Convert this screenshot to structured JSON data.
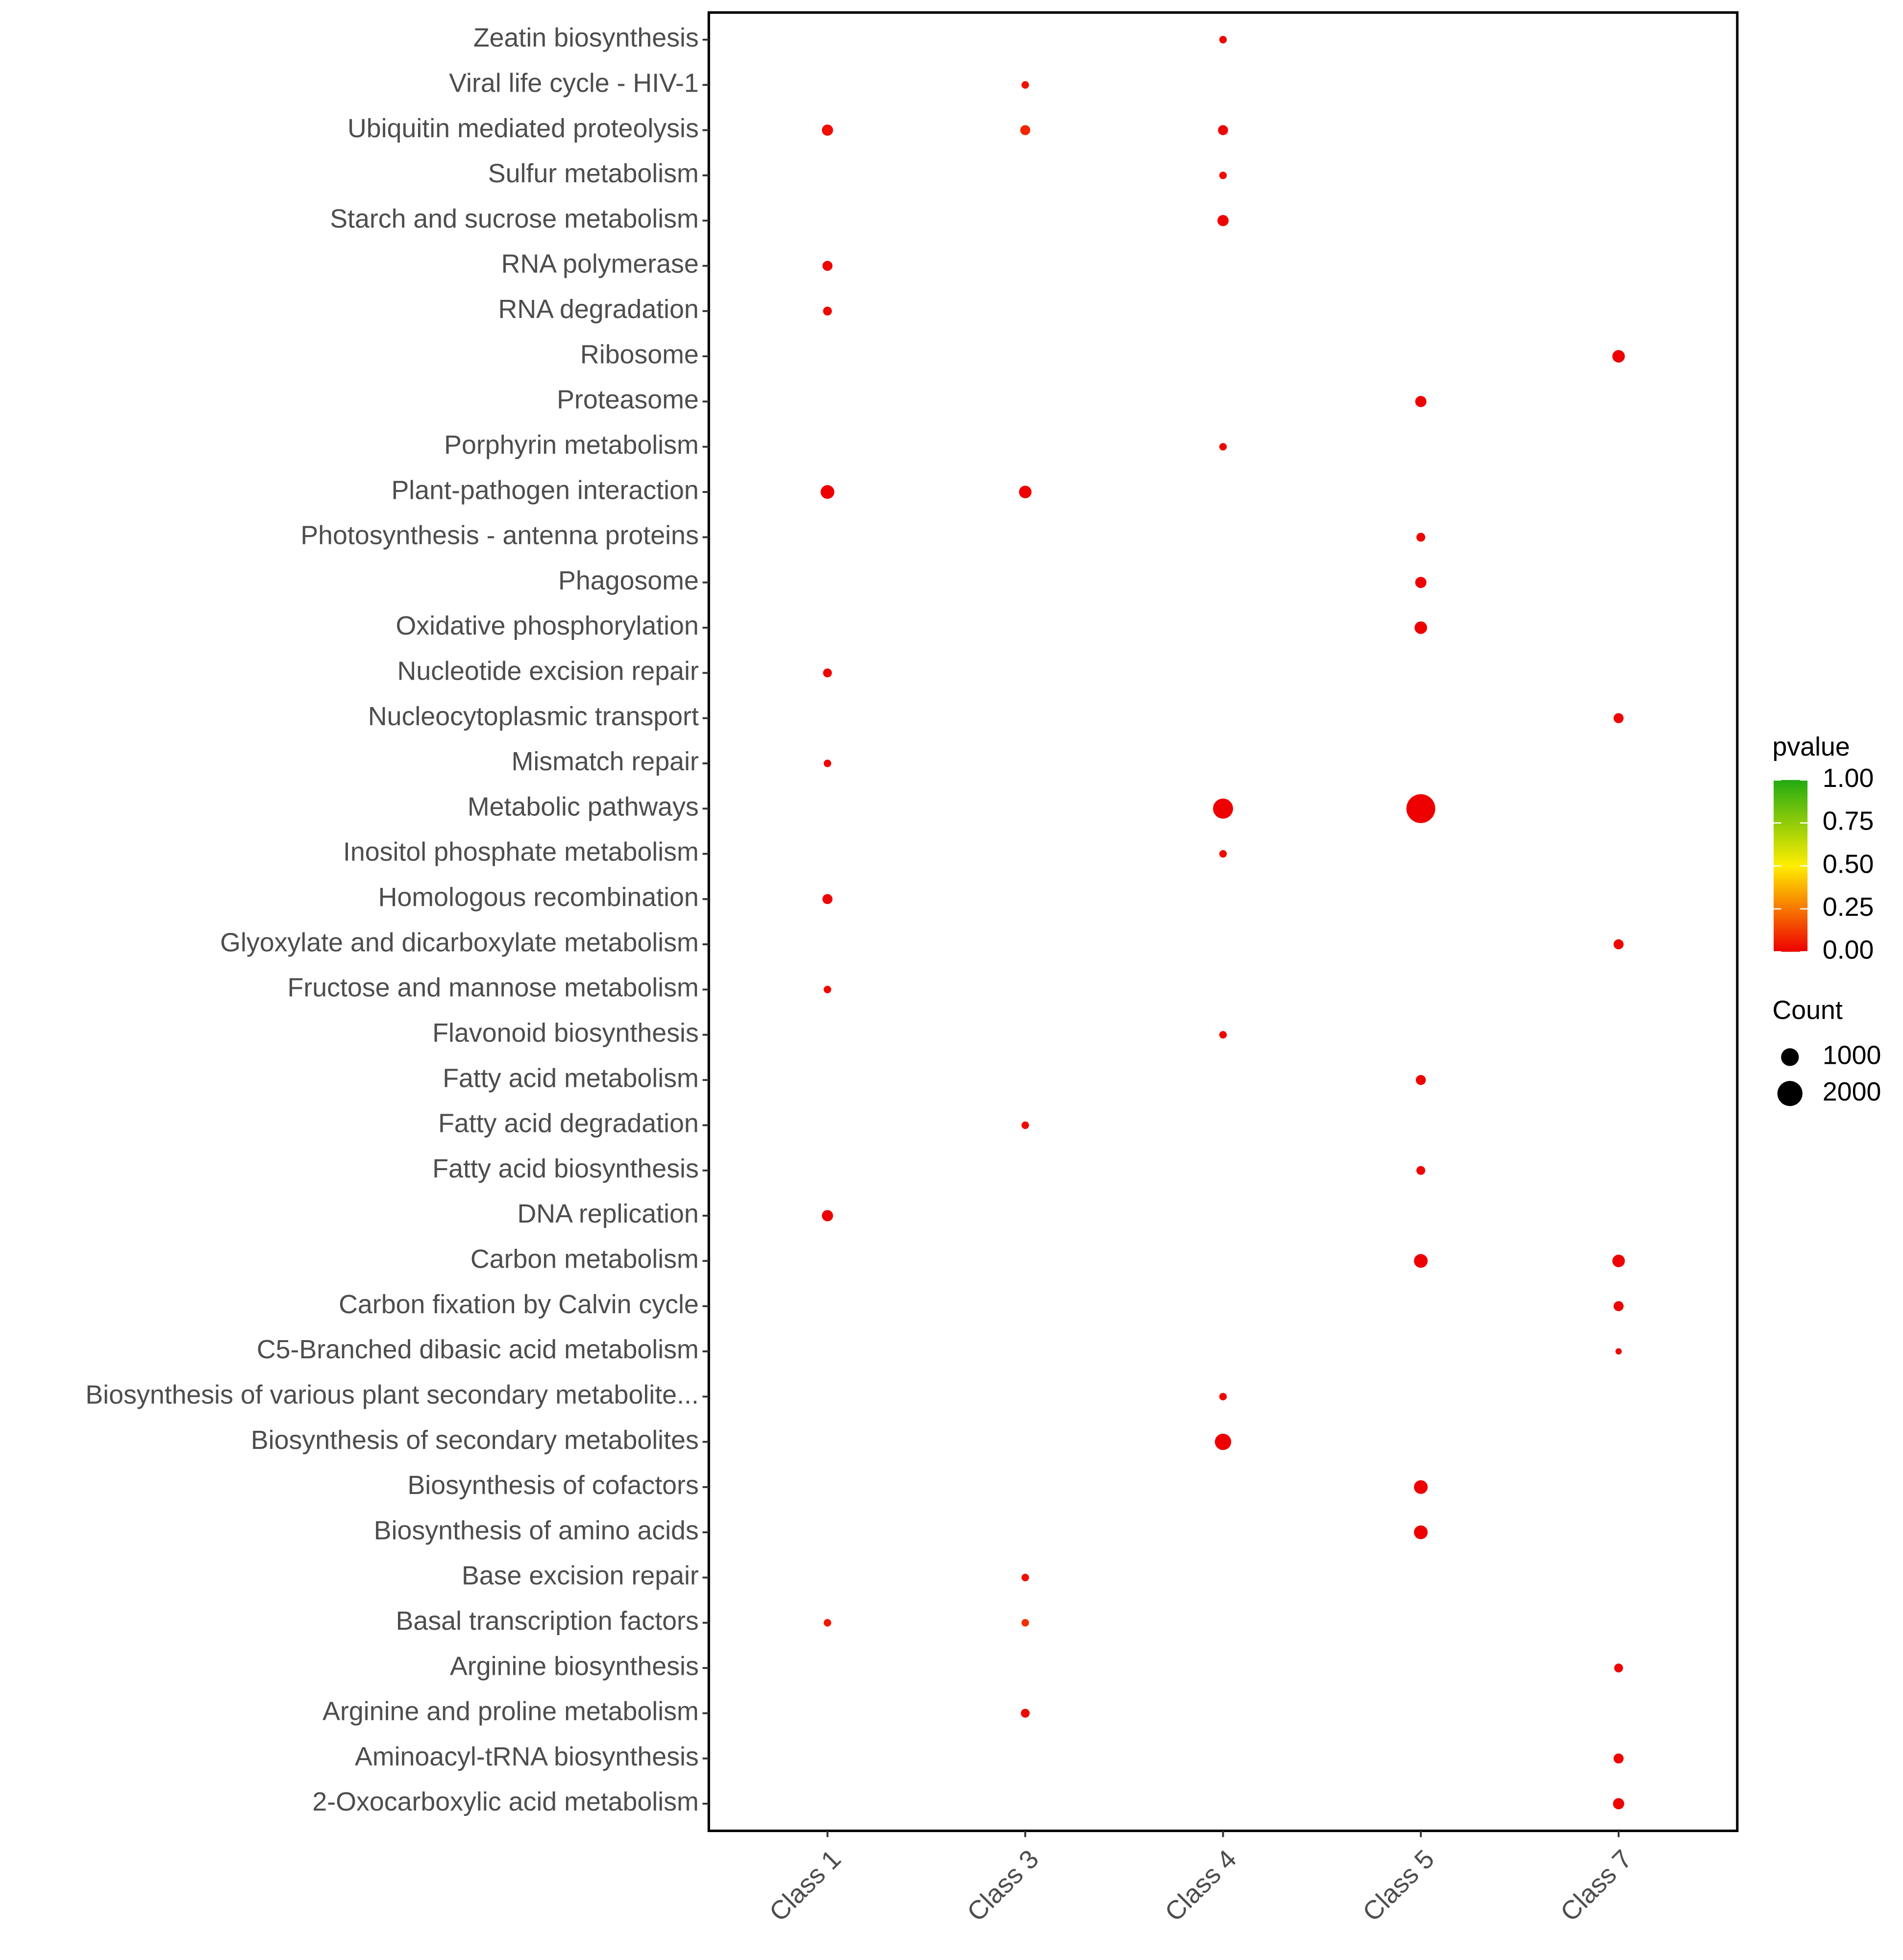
{
  "chart_data": {
    "type": "dot",
    "y_categories": [
      "Zeatin biosynthesis",
      "Viral life cycle - HIV-1",
      "Ubiquitin mediated proteolysis",
      "Sulfur metabolism",
      "Starch and sucrose metabolism",
      "RNA polymerase",
      "RNA degradation",
      "Ribosome",
      "Proteasome",
      "Porphyrin metabolism",
      "Plant-pathogen interaction",
      "Photosynthesis - antenna proteins",
      "Phagosome",
      "Oxidative phosphorylation",
      "Nucleotide excision repair",
      "Nucleocytoplasmic transport",
      "Mismatch repair",
      "Metabolic pathways",
      "Inositol phosphate metabolism",
      "Homologous recombination",
      "Glyoxylate and dicarboxylate metabolism",
      "Fructose and mannose metabolism",
      "Flavonoid biosynthesis",
      "Fatty acid metabolism",
      "Fatty acid degradation",
      "Fatty acid biosynthesis",
      "DNA replication",
      "Carbon metabolism",
      "Carbon fixation by Calvin cycle",
      "C5-Branched dibasic acid metabolism",
      "Biosynthesis of various plant secondary metabolite...",
      "Biosynthesis of secondary metabolites",
      "Biosynthesis of cofactors",
      "Biosynthesis of amino acids",
      "Base excision repair",
      "Basal transcription factors",
      "Arginine biosynthesis",
      "Arginine and proline metabolism",
      "Aminoacyl-tRNA biosynthesis",
      "2-Oxocarboxylic acid metabolism"
    ],
    "series": [
      {
        "name": "Class 1",
        "count": [
          null,
          null,
          400,
          null,
          null,
          320,
          250,
          null,
          null,
          null,
          600,
          null,
          null,
          null,
          250,
          null,
          180,
          null,
          null,
          320,
          null,
          180,
          null,
          null,
          null,
          null,
          400,
          null,
          null,
          null,
          null,
          null,
          null,
          null,
          null,
          180,
          null,
          null,
          null,
          null
        ],
        "pvalue": [
          null,
          null,
          0.03,
          null,
          null,
          0.01,
          0.01,
          null,
          null,
          null,
          0.001,
          null,
          null,
          null,
          0.01,
          null,
          0.01,
          null,
          null,
          0.01,
          null,
          0.02,
          null,
          null,
          null,
          null,
          0.005,
          null,
          null,
          null,
          null,
          null,
          null,
          null,
          null,
          0.05,
          null,
          null,
          null,
          null
        ]
      },
      {
        "name": "Class 3",
        "count": [
          null,
          180,
          320,
          null,
          null,
          null,
          null,
          null,
          null,
          null,
          500,
          null,
          null,
          null,
          null,
          null,
          null,
          null,
          null,
          null,
          null,
          null,
          null,
          null,
          180,
          null,
          null,
          null,
          null,
          null,
          null,
          null,
          null,
          null,
          180,
          180,
          null,
          250,
          null,
          null
        ],
        "pvalue": [
          null,
          0.04,
          0.08,
          null,
          null,
          null,
          null,
          null,
          null,
          null,
          0.001,
          null,
          null,
          null,
          null,
          null,
          null,
          null,
          null,
          null,
          null,
          null,
          null,
          null,
          0.02,
          null,
          null,
          null,
          null,
          null,
          null,
          null,
          null,
          null,
          0.03,
          0.1,
          null,
          0.02,
          null,
          null
        ]
      },
      {
        "name": "Class 4",
        "count": [
          180,
          null,
          320,
          180,
          400,
          null,
          null,
          null,
          null,
          180,
          null,
          null,
          null,
          null,
          null,
          null,
          null,
          1280,
          180,
          null,
          null,
          null,
          180,
          null,
          null,
          null,
          null,
          null,
          null,
          null,
          180,
          850,
          null,
          null,
          null,
          null,
          null,
          null,
          null,
          null
        ],
        "pvalue": [
          0.01,
          null,
          0.01,
          0.02,
          0.005,
          null,
          null,
          null,
          null,
          0.01,
          null,
          null,
          null,
          null,
          null,
          null,
          null,
          0.001,
          0.02,
          null,
          null,
          null,
          0.01,
          null,
          null,
          null,
          null,
          null,
          null,
          null,
          0.01,
          0.001,
          null,
          null,
          null,
          null,
          null,
          null,
          null,
          null
        ]
      },
      {
        "name": "Class 5",
        "count": [
          null,
          null,
          null,
          null,
          null,
          null,
          null,
          null,
          400,
          null,
          null,
          250,
          400,
          500,
          null,
          null,
          null,
          2650,
          null,
          null,
          null,
          null,
          null,
          320,
          null,
          250,
          null,
          600,
          null,
          null,
          null,
          null,
          600,
          600,
          null,
          null,
          null,
          null,
          null,
          null
        ],
        "pvalue": [
          null,
          null,
          null,
          null,
          null,
          null,
          null,
          null,
          0.005,
          null,
          null,
          0.01,
          0.005,
          0.003,
          null,
          null,
          null,
          0.0001,
          null,
          null,
          null,
          null,
          null,
          0.01,
          null,
          0.01,
          null,
          0.001,
          null,
          null,
          null,
          null,
          0.001,
          0.001,
          null,
          null,
          null,
          null,
          null,
          null
        ]
      },
      {
        "name": "Class 7",
        "count": [
          null,
          null,
          null,
          null,
          null,
          null,
          null,
          500,
          null,
          null,
          null,
          null,
          null,
          null,
          null,
          320,
          null,
          null,
          null,
          null,
          320,
          null,
          null,
          null,
          null,
          null,
          null,
          500,
          320,
          125,
          null,
          null,
          null,
          null,
          null,
          null,
          250,
          null,
          320,
          400
        ],
        "pvalue": [
          null,
          null,
          null,
          null,
          null,
          null,
          null,
          0.005,
          null,
          null,
          null,
          null,
          null,
          null,
          null,
          0.01,
          null,
          null,
          null,
          null,
          0.01,
          null,
          null,
          null,
          null,
          null,
          null,
          0.005,
          0.01,
          0.02,
          null,
          null,
          null,
          null,
          null,
          null,
          0.01,
          null,
          0.01,
          0.008
        ]
      }
    ],
    "color_legend_title": "pvalue",
    "color_lim": [
      0,
      1
    ],
    "color_ticks": [
      {
        "value": 0,
        "label": "0.00"
      },
      {
        "value": 0.25,
        "label": "0.25"
      },
      {
        "value": 0.5,
        "label": "0.50"
      },
      {
        "value": 0.75,
        "label": "0.75"
      },
      {
        "value": 1,
        "label": "1.00"
      }
    ],
    "color_scale": [
      "#ee0000",
      "#ffee00",
      "#22aa11"
    ],
    "size_legend_title": "Count",
    "size_ticks": [
      1000,
      2000
    ]
  }
}
